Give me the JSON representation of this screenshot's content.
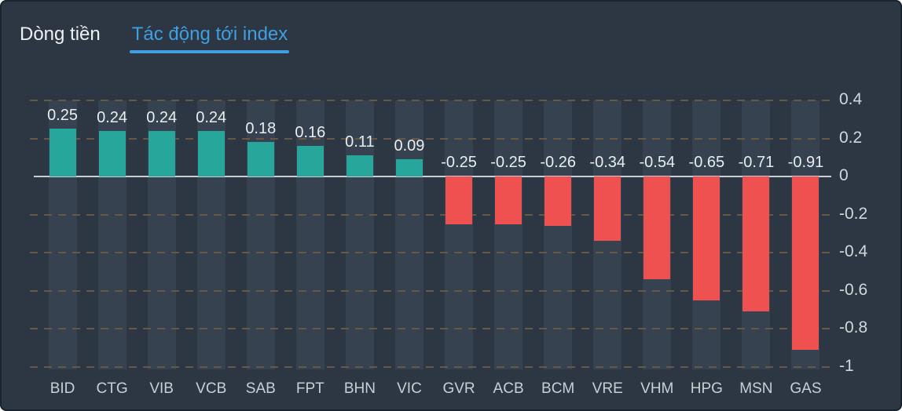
{
  "tabs": [
    {
      "label": "Dòng tiền",
      "active": false
    },
    {
      "label": "Tác động tới index",
      "active": true
    }
  ],
  "chart_data": {
    "type": "bar",
    "title": "Tác động tới index",
    "categories": [
      "BID",
      "CTG",
      "VIB",
      "VCB",
      "SAB",
      "FPT",
      "BHN",
      "VIC",
      "GVR",
      "ACB",
      "BCM",
      "VRE",
      "VHM",
      "HPG",
      "MSN",
      "GAS"
    ],
    "values": [
      0.25,
      0.24,
      0.24,
      0.24,
      0.18,
      0.16,
      0.11,
      0.09,
      -0.25,
      -0.25,
      -0.26,
      -0.34,
      -0.54,
      -0.65,
      -0.71,
      -0.91
    ],
    "value_labels": [
      "0.25",
      "0.24",
      "0.24",
      "0.24",
      "0.18",
      "0.16",
      "0.11",
      "0.09",
      "-0.25",
      "-0.25",
      "-0.26",
      "-0.34",
      "-0.54",
      "-0.65",
      "-0.71",
      "-0.91"
    ],
    "y_ticks": [
      "0.4",
      "0.2",
      "0",
      "-0.2",
      "-0.4",
      "-0.6",
      "-0.8",
      "-1"
    ],
    "ylim": [
      -1.05,
      0.45
    ],
    "xlabel": "",
    "ylabel": "",
    "legend_position": "none",
    "grid": "horizontal-dashed",
    "colors": {
      "positive": "#27a69b",
      "negative": "#ef5150"
    }
  },
  "theme": {
    "background": "#2c3743",
    "column_track": "#364250",
    "grid_dash": "#665843",
    "zero_line": "#c9ced3",
    "tab_active": "#3f9fe2",
    "tab_inactive": "#eef1f4",
    "value_label": "#e9edf0",
    "axis_label": "#d2d7db",
    "category_label": "#c9cfd5",
    "border": "#1a242e"
  }
}
